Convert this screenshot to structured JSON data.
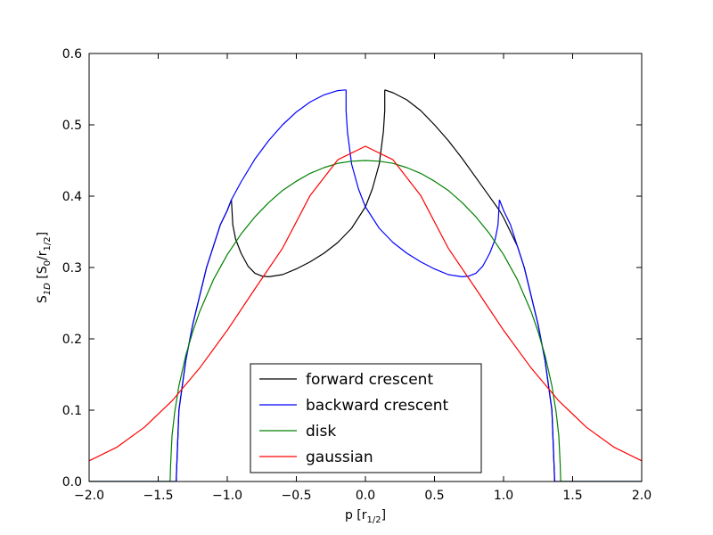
{
  "chart_data": {
    "type": "line",
    "title": "",
    "xlabel": {
      "main": "p  [r",
      "sub": "1/2",
      "close": "]"
    },
    "ylabel": {
      "main": "S",
      "sub": "1D",
      "mid": "  [S",
      "sub0": "0",
      "slash": "/r",
      "sub2": "1/2",
      "close": "]"
    },
    "xlim": [
      -2.0,
      2.0
    ],
    "ylim": [
      0.0,
      0.6
    ],
    "xticks": [
      "−2.0",
      "−1.5",
      "−1.0",
      "−0.5",
      "0.0",
      "0.5",
      "1.0",
      "1.5",
      "2.0"
    ],
    "xtick_values": [
      -2.0,
      -1.5,
      -1.0,
      -0.5,
      0.0,
      0.5,
      1.0,
      1.5,
      2.0
    ],
    "yticks": [
      "0.0",
      "0.1",
      "0.2",
      "0.3",
      "0.4",
      "0.5",
      "0.6"
    ],
    "ytick_values": [
      0.0,
      0.1,
      0.2,
      0.3,
      0.4,
      0.5,
      0.6
    ],
    "grid": false,
    "legend_position": "lower-center",
    "series": [
      {
        "name": "forward crescent",
        "color": "#000000",
        "segments": [
          {
            "x": [
              -2.0,
              -1.37
            ],
            "y": [
              0.0,
              0.0
            ]
          },
          {
            "x": [
              -1.37,
              -1.35,
              -1.3,
              -1.25,
              -1.2,
              -1.15,
              -1.1,
              -1.05,
              -1.0,
              -0.97
            ],
            "y": [
              0.0,
              0.1,
              0.17,
              0.22,
              0.26,
              0.3,
              0.33,
              0.36,
              0.38,
              0.395
            ]
          },
          {
            "x": [
              -0.97,
              -0.96,
              -0.94,
              -0.9,
              -0.85,
              -0.8,
              -0.75,
              -0.7,
              -0.6,
              -0.5,
              -0.4,
              -0.3,
              -0.2,
              -0.1,
              0.0,
              0.05,
              0.1,
              0.13,
              0.14,
              0.14
            ],
            "y": [
              0.395,
              0.36,
              0.34,
              0.32,
              0.302,
              0.292,
              0.288,
              0.287,
              0.29,
              0.298,
              0.308,
              0.32,
              0.335,
              0.355,
              0.385,
              0.41,
              0.445,
              0.49,
              0.52,
              0.549
            ]
          },
          {
            "x": [
              0.14,
              0.2,
              0.3,
              0.4,
              0.5,
              0.6,
              0.7,
              0.8,
              0.9,
              0.97
            ],
            "y": [
              0.549,
              0.545,
              0.535,
              0.52,
              0.5,
              0.478,
              0.453,
              0.426,
              0.399,
              0.38
            ]
          },
          {
            "x": [
              0.97,
              1.0,
              1.05,
              1.1,
              1.15,
              1.2,
              1.25,
              1.3,
              1.35,
              1.37
            ],
            "y": [
              0.38,
              0.37,
              0.35,
              0.33,
              0.3,
              0.26,
              0.22,
              0.17,
              0.1,
              0.0
            ]
          },
          {
            "x": [
              1.37,
              2.0
            ],
            "y": [
              0.0,
              0.0
            ]
          }
        ]
      },
      {
        "name": "backward crescent",
        "color": "#0000ff",
        "segments": [
          {
            "x": [
              -2.0,
              -1.37
            ],
            "y": [
              0.0,
              0.0
            ]
          },
          {
            "x": [
              -1.37,
              -1.35,
              -1.3,
              -1.25,
              -1.2,
              -1.15,
              -1.1,
              -1.05,
              -1.0,
              -0.97
            ],
            "y": [
              0.0,
              0.1,
              0.17,
              0.22,
              0.26,
              0.3,
              0.33,
              0.36,
              0.38,
              0.395
            ]
          },
          {
            "x": [
              -0.97,
              -0.9,
              -0.8,
              -0.7,
              -0.6,
              -0.5,
              -0.4,
              -0.3,
              -0.2,
              -0.14
            ],
            "y": [
              0.395,
              0.42,
              0.452,
              0.478,
              0.5,
              0.518,
              0.532,
              0.542,
              0.548,
              0.549
            ]
          },
          {
            "x": [
              -0.14,
              -0.14,
              -0.13,
              -0.1,
              -0.05,
              0.0,
              0.1,
              0.2,
              0.3,
              0.4,
              0.5,
              0.6,
              0.7,
              0.75,
              0.8,
              0.85,
              0.9,
              0.94,
              0.96,
              0.97
            ],
            "y": [
              0.549,
              0.52,
              0.49,
              0.445,
              0.41,
              0.385,
              0.355,
              0.335,
              0.32,
              0.308,
              0.298,
              0.29,
              0.287,
              0.288,
              0.292,
              0.302,
              0.32,
              0.34,
              0.36,
              0.395
            ]
          },
          {
            "x": [
              0.97,
              1.0,
              1.05,
              1.1,
              1.15,
              1.2,
              1.25,
              1.3,
              1.35,
              1.37
            ],
            "y": [
              0.395,
              0.38,
              0.36,
              0.33,
              0.3,
              0.26,
              0.22,
              0.17,
              0.1,
              0.0
            ]
          },
          {
            "x": [
              1.37,
              2.0
            ],
            "y": [
              0.0,
              0.0
            ]
          }
        ]
      },
      {
        "name": "disk",
        "color": "#008000",
        "segments": [
          {
            "x": [
              -2.0,
              -1.414
            ],
            "y": [
              0.0,
              0.0
            ]
          },
          {
            "x": [
              -1.414,
              -1.41,
              -1.4,
              -1.38,
              -1.35,
              -1.3,
              -1.25,
              -1.2,
              -1.1,
              -1.0,
              -0.9,
              -0.8,
              -0.7,
              -0.6,
              -0.5,
              -0.4,
              -0.3,
              -0.2,
              -0.1,
              0.0,
              0.1,
              0.2,
              0.3,
              0.4,
              0.5,
              0.6,
              0.7,
              0.8,
              0.9,
              1.0,
              1.1,
              1.2,
              1.25,
              1.3,
              1.35,
              1.38,
              1.4,
              1.41,
              1.414
            ],
            "y": [
              0.0,
              0.024,
              0.064,
              0.098,
              0.134,
              0.177,
              0.21,
              0.238,
              0.283,
              0.318,
              0.347,
              0.371,
              0.391,
              0.408,
              0.421,
              0.432,
              0.44,
              0.446,
              0.449,
              0.45,
              0.449,
              0.446,
              0.44,
              0.432,
              0.421,
              0.408,
              0.391,
              0.371,
              0.347,
              0.318,
              0.283,
              0.238,
              0.21,
              0.177,
              0.134,
              0.098,
              0.064,
              0.024,
              0.0
            ]
          },
          {
            "x": [
              1.414,
              2.0
            ],
            "y": [
              0.0,
              0.0
            ]
          }
        ]
      },
      {
        "name": "gaussian",
        "color": "#ff0000",
        "segments": [
          {
            "x": [
              -2.0,
              -1.8,
              -1.6,
              -1.4,
              -1.2,
              -1.0,
              -0.8,
              -0.6,
              -0.4,
              -0.2,
              0.0,
              0.2,
              0.4,
              0.6,
              0.8,
              1.0,
              1.2,
              1.4,
              1.6,
              1.8,
              2.0
            ],
            "y": [
              0.029,
              0.048,
              0.076,
              0.113,
              0.159,
              0.212,
              0.27,
              0.327,
              0.401,
              0.451,
              0.47,
              0.451,
              0.401,
              0.327,
              0.27,
              0.212,
              0.159,
              0.113,
              0.076,
              0.048,
              0.029
            ]
          }
        ]
      }
    ]
  }
}
